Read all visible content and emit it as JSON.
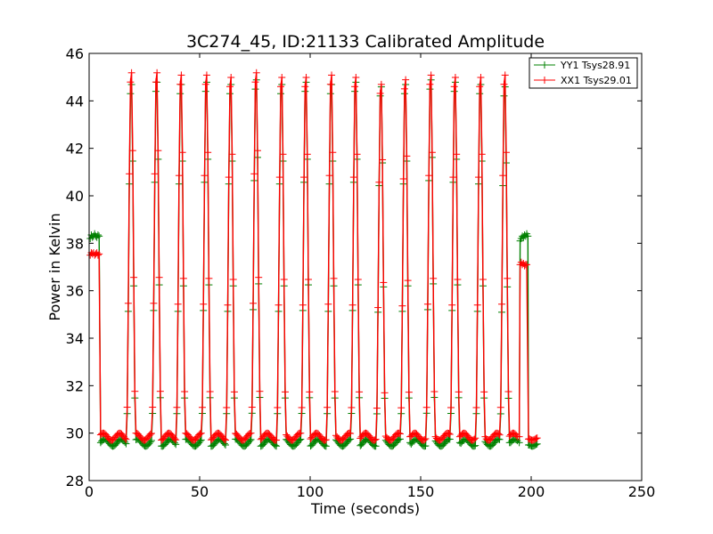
{
  "chart_data": {
    "type": "line",
    "title": "3C274_45, ID:21133 Calibrated Amplitude",
    "xlabel": "Time (seconds)",
    "ylabel": "Power in Kelvin",
    "xlim": [
      0,
      250
    ],
    "ylim": [
      28,
      46
    ],
    "xticks": [
      0,
      50,
      100,
      150,
      200,
      250
    ],
    "yticks": [
      28,
      30,
      32,
      34,
      36,
      38,
      40,
      42,
      44,
      46
    ],
    "grid": false,
    "legend_position": "top-right",
    "peak_times": [
      19,
      30.5,
      41.5,
      53,
      64,
      75.5,
      87,
      98,
      109.5,
      120.5,
      132,
      143,
      154.5,
      165.5,
      177,
      188
    ],
    "series": [
      {
        "name": "YY1 Tsys28.91",
        "color": "#008000",
        "segments": [
          {
            "x": [
              0.5,
              1,
              1.5,
              2,
              2.5,
              3,
              3.5,
              4,
              4.5
            ],
            "y": [
              38.2,
              38.35,
              38.25,
              38.3,
              38.4,
              38.3,
              38.25,
              38.35,
              38.3
            ]
          },
          {
            "x": [
              195,
              195.5,
              196,
              196.5,
              197,
              197.5,
              198,
              198.5
            ],
            "y": [
              38.1,
              38.2,
              38.3,
              38.25,
              38.35,
              38.3,
              38.4,
              38.3
            ]
          }
        ],
        "baseline": 29.6,
        "peaks": [
          45.0,
          45.1,
          45.0,
          45.1,
          45.0,
          45.2,
          45.0,
          45.1,
          45.0,
          45.1,
          44.9,
          45.0,
          45.2,
          45.1,
          45.0,
          44.9
        ]
      },
      {
        "name": "XX1 Tsys29.01",
        "color": "#ff0000",
        "segments": [
          {
            "x": [
              0.5,
              1,
              1.5,
              2,
              2.5,
              3,
              3.5,
              4,
              4.5
            ],
            "y": [
              37.5,
              37.6,
              37.55,
              37.6,
              37.5,
              37.55,
              37.6,
              37.5,
              37.55
            ]
          },
          {
            "x": [
              195,
              195.5,
              196,
              196.5,
              197,
              197.5,
              198
            ],
            "y": [
              37.1,
              37.2,
              37.1,
              37.15,
              37.05,
              37.1,
              37.1
            ]
          }
        ],
        "baseline": 29.85,
        "peaks": [
          45.5,
          45.5,
          45.4,
          45.4,
          45.3,
          45.5,
          45.3,
          45.3,
          45.4,
          45.3,
          45.0,
          45.2,
          45.4,
          45.3,
          45.3,
          45.4
        ]
      }
    ]
  }
}
